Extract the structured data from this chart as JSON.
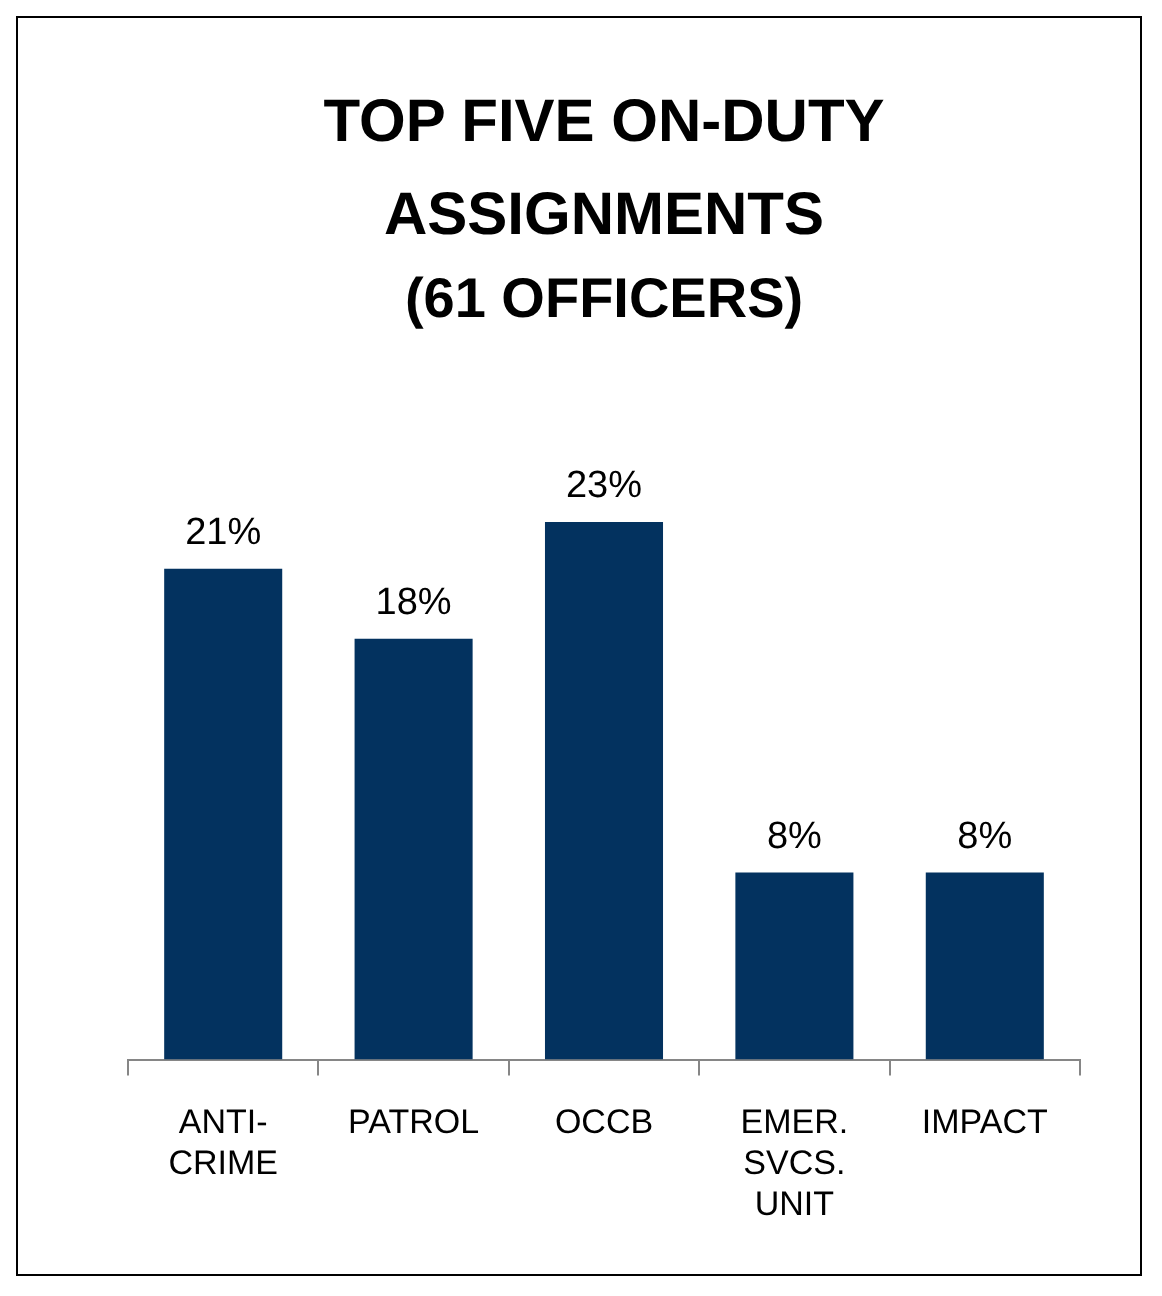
{
  "chart_data": {
    "type": "bar",
    "title": "TOP FIVE ON-DUTY ASSIGNMENTS",
    "subtitle": "(61 OFFICERS)",
    "categories": [
      "ANTI-CRIME",
      "PATROL",
      "OCCB",
      "EMER. SVCS. UNIT",
      "IMPACT"
    ],
    "values": [
      21,
      18,
      23,
      8,
      8
    ],
    "value_labels": [
      "21%",
      "18%",
      "23%",
      "8%",
      "8%"
    ],
    "color": "#03325f",
    "tick_labels": "x",
    "grid": false,
    "legend": false
  }
}
